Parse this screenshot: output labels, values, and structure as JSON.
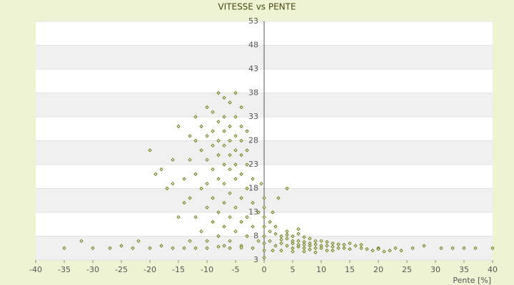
{
  "chart_data": {
    "type": "scatter",
    "title": "VITESSE vs PENTE",
    "x_label": "Pente [%]",
    "color": "#6b7a10",
    "xlim": [
      -40,
      40
    ],
    "xticks": [
      -40,
      -35,
      -30,
      -25,
      -20,
      -15,
      -10,
      -5,
      0,
      5,
      10,
      15,
      20,
      25,
      30,
      35,
      40
    ],
    "ylim": [
      3,
      53
    ],
    "yticks": [
      3,
      8,
      13,
      18,
      23,
      28,
      33,
      38,
      43,
      48,
      53
    ],
    "grid": true,
    "x": [
      -8,
      -7,
      -5,
      -6,
      -10,
      -9,
      -4,
      -7,
      -5,
      -8,
      -11,
      -6,
      -4,
      -9,
      -7,
      -5,
      -3,
      -10,
      -8,
      -6,
      -4,
      -12,
      -9,
      -7,
      -5,
      -3,
      -11,
      -8,
      -6,
      -4,
      -13,
      -10,
      -7,
      -5,
      -3,
      -9,
      -6,
      -4,
      -12,
      -8,
      -5,
      -2,
      -14,
      -10,
      -7,
      -3,
      -16,
      -11,
      -6,
      -4,
      -9,
      -13,
      -2,
      -7,
      -5,
      -10,
      -1,
      -8,
      -3,
      -6,
      -12,
      -4,
      -9,
      -2,
      -7,
      -5,
      -11,
      -3,
      -8,
      -6,
      -1,
      -10,
      -4,
      -7,
      -13,
      -15,
      -14,
      -18,
      -20,
      -17,
      -19,
      -16,
      -15,
      -13,
      -12,
      -35,
      -32,
      -30,
      -27,
      -25,
      -23,
      -22,
      -20,
      -18,
      -16,
      -14,
      -12,
      -10,
      -8,
      -6,
      -4,
      -2,
      20,
      23,
      26,
      28,
      31,
      33,
      35,
      37,
      40,
      0,
      0,
      0,
      0,
      0,
      0,
      0,
      0,
      -0.5,
      1,
      1,
      2,
      3,
      4,
      5,
      6,
      7,
      8,
      9,
      10,
      11,
      12,
      13,
      14,
      15,
      2,
      3,
      4,
      5,
      6,
      7,
      8,
      9,
      10,
      11,
      12,
      3,
      5,
      6,
      7,
      8,
      9,
      10,
      11,
      12,
      14,
      16,
      17,
      18,
      19,
      20,
      21,
      22,
      4,
      6,
      2,
      1,
      1.5,
      3,
      5,
      7,
      9,
      4,
      5,
      6,
      7,
      8,
      13,
      15,
      17,
      2.5,
      4,
      1.5,
      24
    ],
    "values": [
      38,
      37,
      38,
      36,
      35,
      34,
      35,
      33,
      33,
      32,
      31,
      31,
      31,
      30,
      30,
      29,
      30,
      29,
      28,
      28,
      28,
      28,
      27,
      27,
      26,
      26,
      26,
      25,
      25,
      25,
      24,
      24,
      23,
      23,
      23,
      22,
      22,
      21,
      21,
      20,
      20,
      20,
      20,
      19,
      19,
      18,
      19,
      18,
      17,
      16,
      16,
      16,
      15,
      15,
      14,
      14,
      13,
      13,
      12,
      12,
      12,
      11,
      11,
      10,
      10,
      9,
      9,
      8,
      8,
      7,
      7,
      7,
      6,
      6,
      7,
      12,
      15,
      22,
      26,
      18,
      21,
      24,
      31,
      29,
      33,
      5.5,
      7,
      5.5,
      5.5,
      6,
      5.5,
      7,
      5.5,
      6,
      5.5,
      5.5,
      5.5,
      5.5,
      5.8,
      5.5,
      5.6,
      5.5,
      5.5,
      5.5,
      5.5,
      6,
      5.5,
      5.5,
      5.5,
      5.5,
      5.5,
      3.5,
      5,
      6.5,
      8,
      10,
      12,
      14,
      16,
      19,
      11,
      9,
      8.5,
      8,
      7.5,
      7,
      7,
      6.8,
      6.5,
      6.3,
      6,
      6,
      5.8,
      5.5,
      5.5,
      5.3,
      6,
      6.5,
      6,
      5.5,
      5.8,
      5.5,
      6,
      5.5,
      5.5,
      5,
      5,
      7.3,
      8,
      8.5,
      7.8,
      7.5,
      7,
      7,
      6.8,
      6.5,
      6.2,
      6,
      5.5,
      5.3,
      5,
      5.3,
      4.8,
      5,
      9,
      9.5,
      10,
      7,
      5,
      5,
      4.8,
      4.8,
      4.6,
      8.3,
      6.5,
      6.2,
      6.2,
      5.2,
      6.3,
      6.5,
      6.2,
      16,
      18,
      13,
      5
    ]
  }
}
